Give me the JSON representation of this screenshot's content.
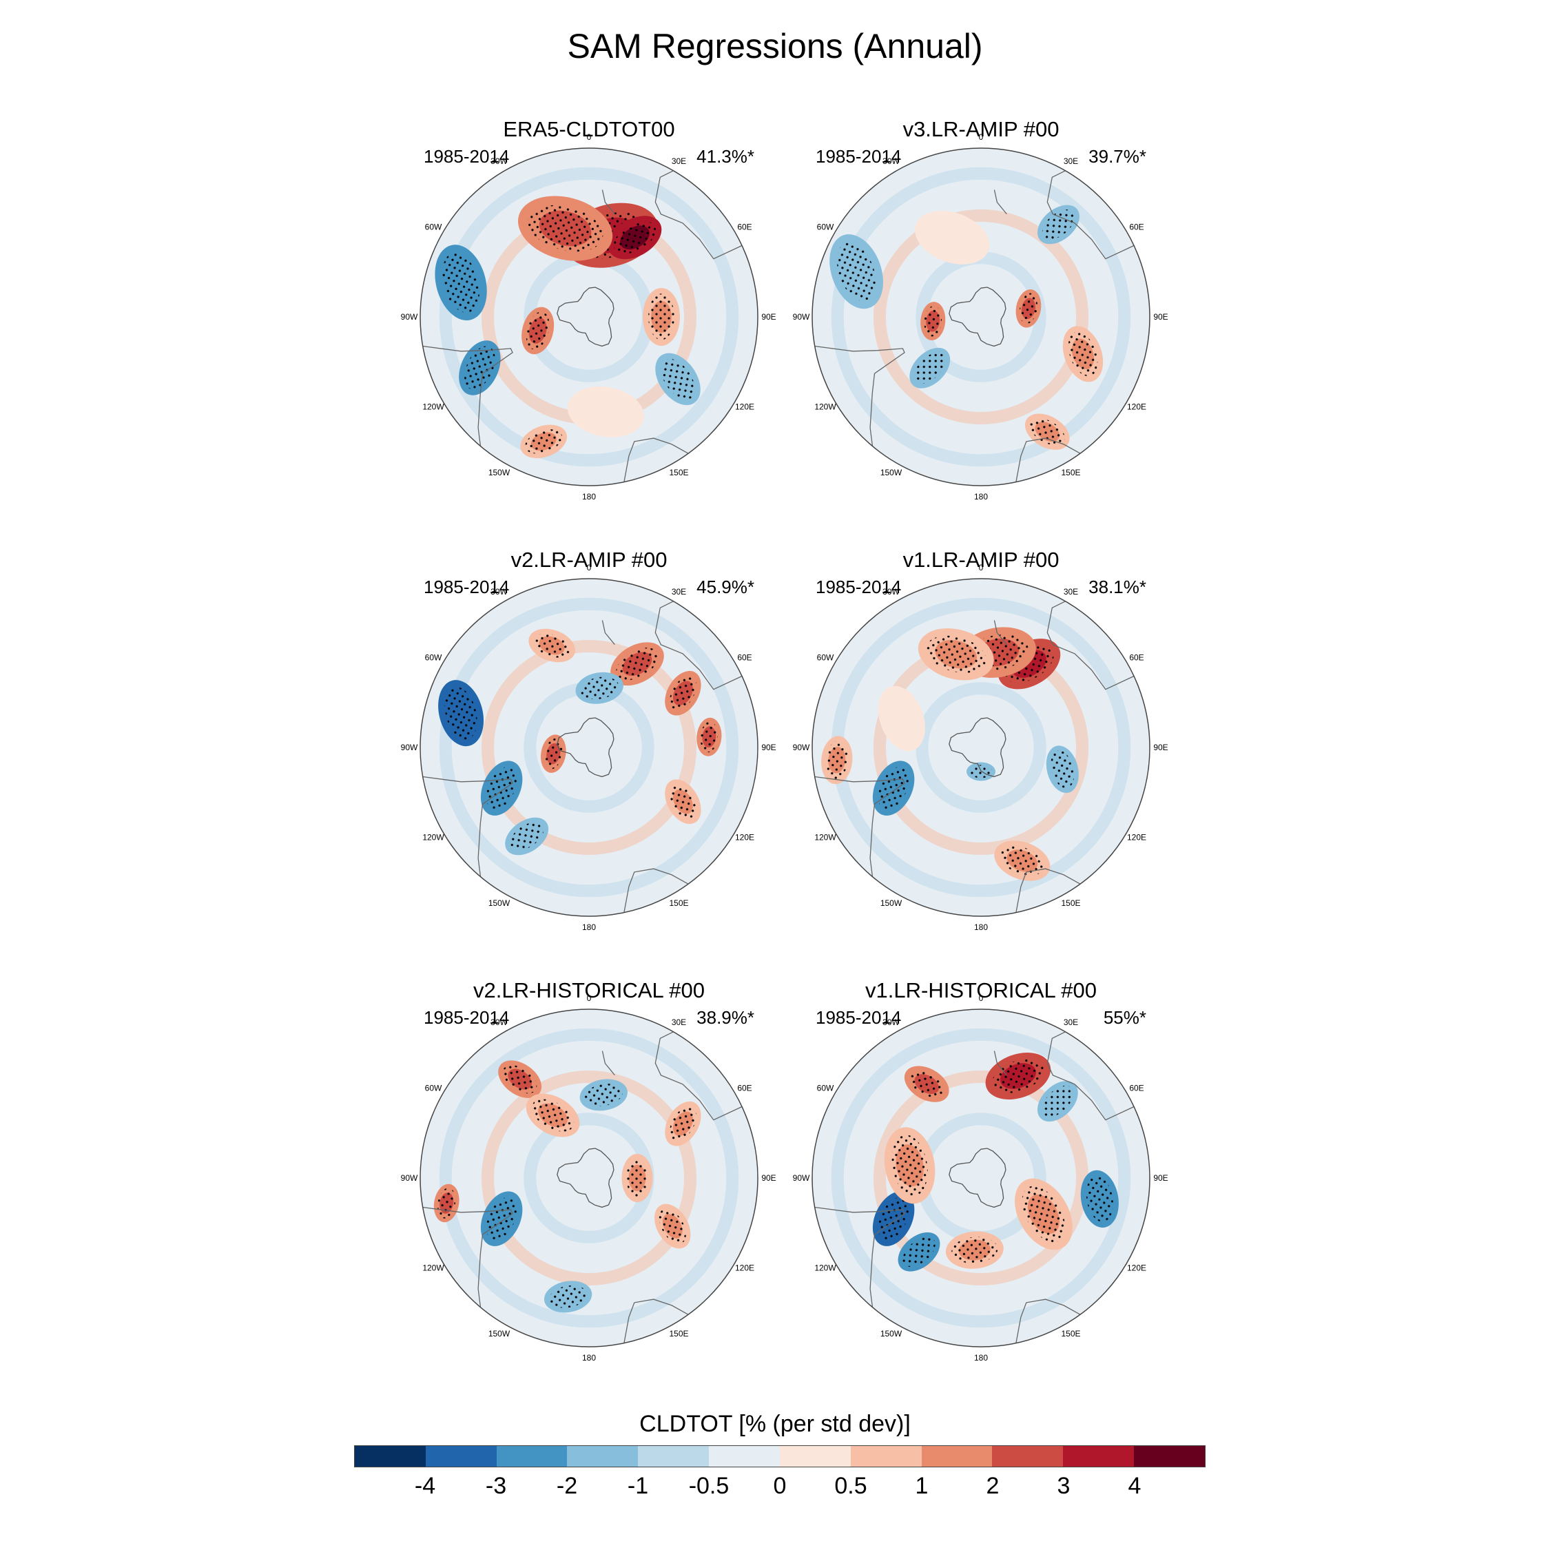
{
  "title": "SAM Regressions (Annual)",
  "colorbar": {
    "label": "CLDTOT [% (per std dev)]",
    "levels": [
      "-4",
      "-3",
      "-2",
      "-1",
      "-0.5",
      "0",
      "0.5",
      "1",
      "2",
      "3",
      "4"
    ],
    "colors": [
      "#053061",
      "#2166ac",
      "#4393c3",
      "#87bedc",
      "#bcd9ea",
      "#e6eef4",
      "#fbe6dc",
      "#f6bfa6",
      "#e88a6c",
      "#cc4c43",
      "#b0172b",
      "#67001f"
    ]
  },
  "map_labels": {
    "top": "0",
    "bottom": "180",
    "30E": "30E",
    "60E": "60E",
    "90E": "90E",
    "120E": "120E",
    "150E": "150E",
    "30W": "30W",
    "60W": "60W",
    "90W": "90W",
    "120W": "120W",
    "150W": "150W"
  },
  "chart_data": {
    "type": "heatmap",
    "projection": "south-polar-stereographic",
    "panels": [
      {
        "title": "ERA5-CLDTOT00",
        "period": "1985-2014",
        "variance_explained": "41.3%*",
        "features": [
          {
            "lon": 165,
            "lat": -55,
            "value": 3,
            "size": 1
          },
          {
            "lon": 150,
            "lat": -52,
            "value": 4,
            "size": 0.6
          },
          {
            "lon": -165,
            "lat": -52,
            "value": 2,
            "size": 1
          },
          {
            "lon": -105,
            "lat": -35,
            "value": -2,
            "size": 0.8
          },
          {
            "lon": -65,
            "lat": -40,
            "value": -2,
            "size": 0.6
          },
          {
            "lon": 55,
            "lat": -45,
            "value": -1,
            "size": 0.6
          },
          {
            "lon": -75,
            "lat": -68,
            "value": 2,
            "size": 0.5
          },
          {
            "lon": -20,
            "lat": -35,
            "value": 1,
            "size": 0.5
          },
          {
            "lon": 90,
            "lat": -60,
            "value": 1,
            "size": 0.6
          },
          {
            "lon": 10,
            "lat": -50,
            "value": 0.5,
            "size": 0.8
          }
        ]
      },
      {
        "title": "v3.LR-AMIP  #00",
        "period": "1985-2014",
        "variance_explained": "39.7%*",
        "features": [
          {
            "lon": -110,
            "lat": -35,
            "value": -1,
            "size": 0.8
          },
          {
            "lon": -45,
            "lat": -60,
            "value": -1,
            "size": 0.5
          },
          {
            "lon": 30,
            "lat": -35,
            "value": 1,
            "size": 0.5
          },
          {
            "lon": 100,
            "lat": -70,
            "value": 2,
            "size": 0.4
          },
          {
            "lon": -85,
            "lat": -70,
            "value": 2,
            "size": 0.4
          },
          {
            "lon": 140,
            "lat": -40,
            "value": -1,
            "size": 0.5
          },
          {
            "lon": 70,
            "lat": -45,
            "value": 1,
            "size": 0.6
          },
          {
            "lon": -160,
            "lat": -55,
            "value": 0.5,
            "size": 0.8
          }
        ]
      },
      {
        "title": "v2.LR-AMIP  #00",
        "period": "1985-2014",
        "variance_explained": "45.9%*",
        "features": [
          {
            "lon": -105,
            "lat": -35,
            "value": -3,
            "size": 0.7
          },
          {
            "lon": -65,
            "lat": -50,
            "value": -2,
            "size": 0.6
          },
          {
            "lon": -35,
            "lat": -45,
            "value": -1,
            "size": 0.5
          },
          {
            "lon": 150,
            "lat": -50,
            "value": 2,
            "size": 0.6
          },
          {
            "lon": 120,
            "lat": -45,
            "value": 2,
            "size": 0.5
          },
          {
            "lon": 95,
            "lat": -40,
            "value": 2,
            "size": 0.4
          },
          {
            "lon": 60,
            "lat": -45,
            "value": 1,
            "size": 0.5
          },
          {
            "lon": 170,
            "lat": -65,
            "value": -1,
            "size": 0.5
          },
          {
            "lon": -160,
            "lat": -45,
            "value": 1,
            "size": 0.5
          },
          {
            "lon": -80,
            "lat": -75,
            "value": 2,
            "size": 0.4
          }
        ]
      },
      {
        "title": "v1.LR-AMIP  #00",
        "period": "1985-2014",
        "variance_explained": "38.1%*",
        "features": [
          {
            "lon": 150,
            "lat": -50,
            "value": 3,
            "size": 0.7
          },
          {
            "lon": 170,
            "lat": -50,
            "value": 2,
            "size": 0.8
          },
          {
            "lon": -165,
            "lat": -50,
            "value": 1,
            "size": 0.8
          },
          {
            "lon": -65,
            "lat": -50,
            "value": -2,
            "size": 0.6
          },
          {
            "lon": -85,
            "lat": -30,
            "value": 1,
            "size": 0.5
          },
          {
            "lon": 75,
            "lat": -55,
            "value": -1,
            "size": 0.5
          },
          {
            "lon": 20,
            "lat": -40,
            "value": 1,
            "size": 0.6
          },
          {
            "lon": -110,
            "lat": -55,
            "value": 0.5,
            "size": 0.7
          },
          {
            "lon": 0,
            "lat": -80,
            "value": -1,
            "size": 0.3
          }
        ]
      },
      {
        "title": "v2.LR-HISTORICAL  #00",
        "period": "1985-2014",
        "variance_explained": "38.9%*",
        "features": [
          {
            "lon": -65,
            "lat": -50,
            "value": -2,
            "size": 0.6
          },
          {
            "lon": -10,
            "lat": -40,
            "value": -1,
            "size": 0.5
          },
          {
            "lon": -145,
            "lat": -40,
            "value": 2,
            "size": 0.5
          },
          {
            "lon": -80,
            "lat": -30,
            "value": 2,
            "size": 0.4
          },
          {
            "lon": 170,
            "lat": -55,
            "value": -1,
            "size": 0.5
          },
          {
            "lon": 120,
            "lat": -45,
            "value": 1,
            "size": 0.5
          },
          {
            "lon": 60,
            "lat": -50,
            "value": 1,
            "size": 0.5
          },
          {
            "lon": -150,
            "lat": -60,
            "value": 1,
            "size": 0.6
          },
          {
            "lon": 90,
            "lat": -70,
            "value": 1,
            "size": 0.5
          }
        ]
      },
      {
        "title": "v1.LR-HISTORICAL  #00",
        "period": "1985-2014",
        "variance_explained": "55%*",
        "features": [
          {
            "lon": 160,
            "lat": -45,
            "value": 3,
            "size": 0.7
          },
          {
            "lon": 135,
            "lat": -45,
            "value": -1,
            "size": 0.5
          },
          {
            "lon": -65,
            "lat": -50,
            "value": -3,
            "size": 0.6
          },
          {
            "lon": -40,
            "lat": -50,
            "value": -2,
            "size": 0.5
          },
          {
            "lon": 80,
            "lat": -40,
            "value": -2,
            "size": 0.6
          },
          {
            "lon": -100,
            "lat": -60,
            "value": 1,
            "size": 0.8
          },
          {
            "lon": 60,
            "lat": -60,
            "value": 1,
            "size": 0.8
          },
          {
            "lon": -150,
            "lat": -45,
            "value": 2,
            "size": 0.5
          },
          {
            "lon": -5,
            "lat": -60,
            "value": 1,
            "size": 0.6
          }
        ]
      }
    ]
  }
}
